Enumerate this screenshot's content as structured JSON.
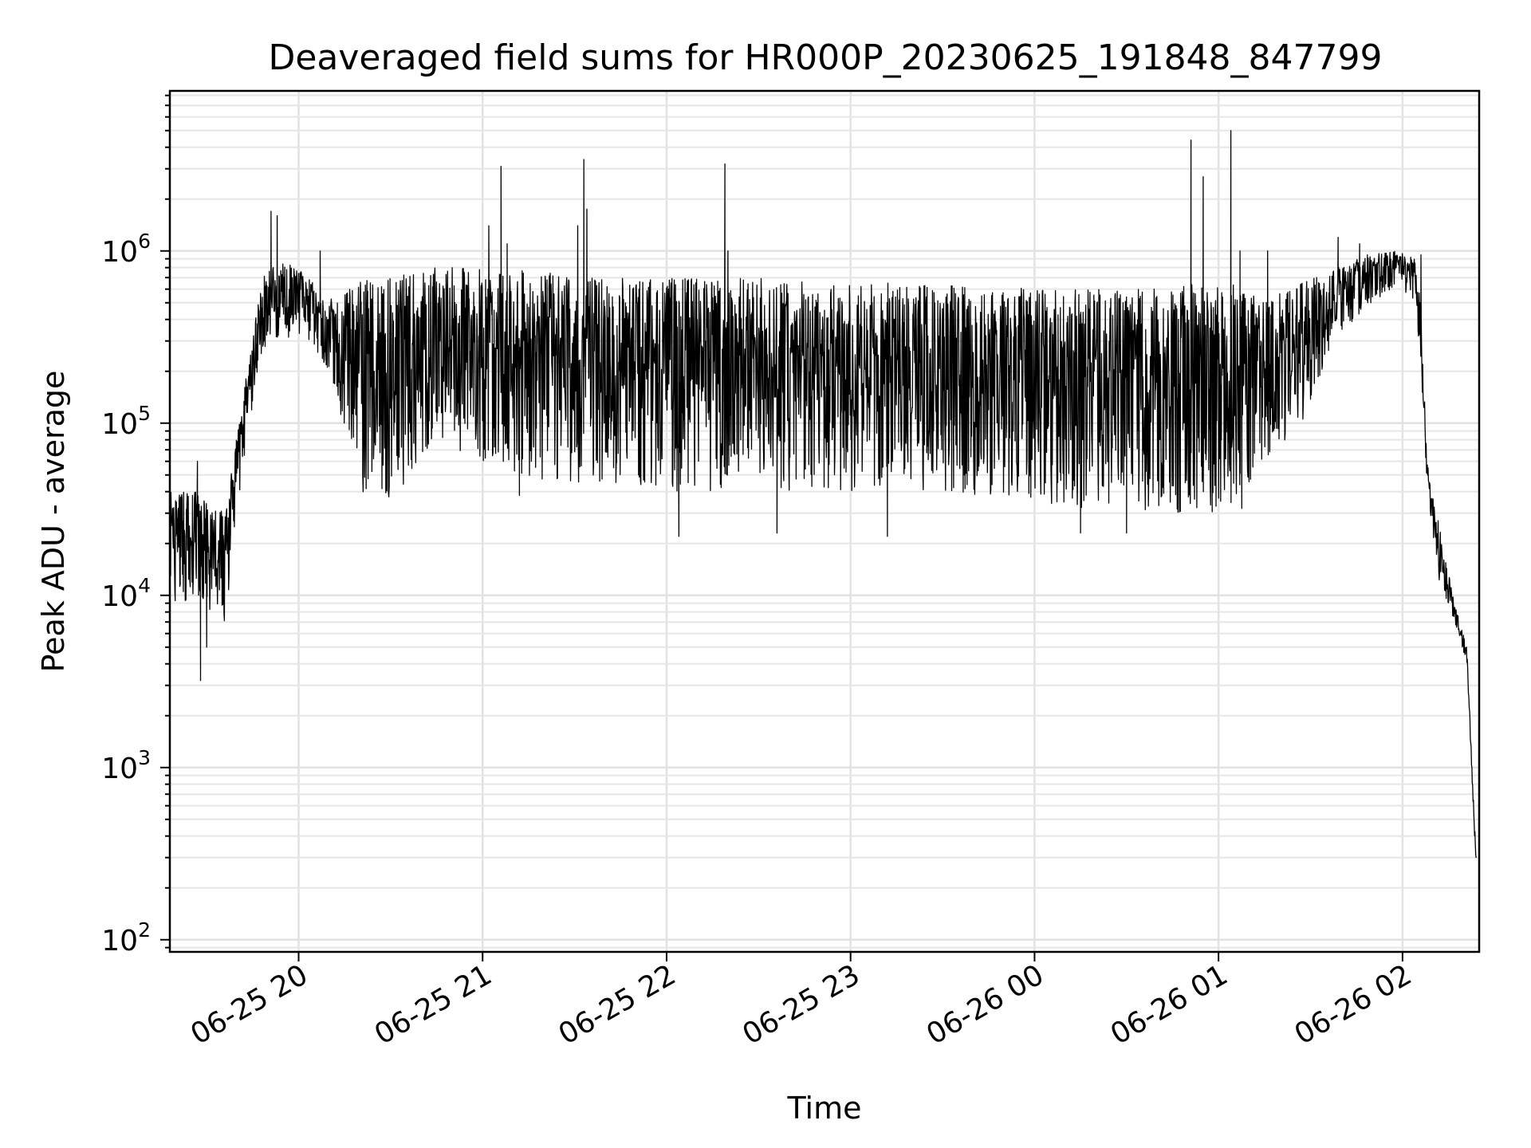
{
  "chart_data": {
    "type": "line",
    "title": "Deaveraged field sums for HR000P_20230625_191848_847799",
    "xlabel": "Time",
    "ylabel": "Peak ADU - average",
    "yscale": "log",
    "ylim": [
      85,
      8500000
    ],
    "xlim": [
      "06-25 19:18",
      "06-26 02:25"
    ],
    "grid": true,
    "line_color": "#000000",
    "x_ticks": [
      {
        "t": "06-25 20:00",
        "label": "06-25 20"
      },
      {
        "t": "06-25 21:00",
        "label": "06-25 21"
      },
      {
        "t": "06-25 22:00",
        "label": "06-25 22"
      },
      {
        "t": "06-25 23:00",
        "label": "06-25 23"
      },
      {
        "t": "06-26 00:00",
        "label": "06-26 00"
      },
      {
        "t": "06-26 01:00",
        "label": "06-26 01"
      },
      {
        "t": "06-26 02:00",
        "label": "06-26 02"
      }
    ],
    "y_ticks": [
      {
        "value": 100,
        "base": "10",
        "exp": "2"
      },
      {
        "value": 1000,
        "base": "10",
        "exp": "3"
      },
      {
        "value": 10000,
        "base": "10",
        "exp": "4"
      },
      {
        "value": 100000,
        "base": "10",
        "exp": "5"
      },
      {
        "value": 1000000,
        "base": "10",
        "exp": "6"
      }
    ],
    "envelope": [
      [
        "06-25 19:18",
        9000,
        40000
      ],
      [
        "06-25 19:27",
        9000,
        40000
      ],
      [
        "06-25 19:36",
        7000,
        30000
      ],
      [
        "06-25 19:42",
        60000,
        150000
      ],
      [
        "06-25 19:48",
        250000,
        700000
      ],
      [
        "06-25 19:54",
        320000,
        900000
      ],
      [
        "06-25 20:04",
        300000,
        700000
      ],
      [
        "06-25 20:12",
        150000,
        500000
      ],
      [
        "06-25 20:20",
        40000,
        700000
      ],
      [
        "06-25 20:30",
        35000,
        700000
      ],
      [
        "06-25 20:45",
        80000,
        800000
      ],
      [
        "06-25 21:00",
        60000,
        800000
      ],
      [
        "06-25 21:20",
        45000,
        750000
      ],
      [
        "06-25 21:40",
        45000,
        700000
      ],
      [
        "06-25 22:00",
        40000,
        700000
      ],
      [
        "06-25 22:30",
        40000,
        700000
      ],
      [
        "06-25 23:00",
        40000,
        650000
      ],
      [
        "06-25 23:30",
        40000,
        650000
      ],
      [
        "06-26 00:00",
        35000,
        600000
      ],
      [
        "06-26 00:30",
        30000,
        600000
      ],
      [
        "06-26 00:59",
        30000,
        650000
      ],
      [
        "06-26 01:08",
        30000,
        650000
      ],
      [
        "06-26 01:15",
        60000,
        500000
      ],
      [
        "06-26 01:28",
        100000,
        700000
      ],
      [
        "06-26 01:38",
        300000,
        800000
      ],
      [
        "06-26 01:48",
        450000,
        950000
      ],
      [
        "06-26 01:58",
        600000,
        1000000
      ],
      [
        "06-26 02:04",
        500000,
        900000
      ],
      [
        "06-26 02:06",
        200000,
        500000
      ],
      [
        "06-26 02:08",
        40000,
        60000
      ],
      [
        "06-26 02:12",
        12000,
        25000
      ],
      [
        "06-26 02:17",
        7000,
        9000
      ],
      [
        "06-26 02:21",
        4000,
        5000
      ],
      [
        "06-26 02:24",
        250,
        300
      ]
    ],
    "spikes": [
      [
        "06-25 19:27",
        60000
      ],
      [
        "06-25 19:28",
        3200
      ],
      [
        "06-25 19:30",
        5000
      ],
      [
        "06-25 19:51",
        1700000
      ],
      [
        "06-25 19:53",
        1600000
      ],
      [
        "06-25 20:07",
        1000000
      ],
      [
        "06-25 21:02",
        1400000
      ],
      [
        "06-25 21:06",
        3100000
      ],
      [
        "06-25 21:08",
        1100000
      ],
      [
        "06-25 21:31",
        1400000
      ],
      [
        "06-25 21:33",
        3400000
      ],
      [
        "06-25 21:34",
        1750000
      ],
      [
        "06-25 22:19",
        3200000
      ],
      [
        "06-25 22:20",
        1000000
      ],
      [
        "06-25 21:12",
        38000
      ],
      [
        "06-25 22:04",
        22000
      ],
      [
        "06-25 22:36",
        23000
      ],
      [
        "06-25 23:12",
        22000
      ],
      [
        "06-26 00:15",
        23000
      ],
      [
        "06-26 00:30",
        23000
      ],
      [
        "06-26 00:51",
        4400000
      ],
      [
        "06-26 00:55",
        2700000
      ],
      [
        "06-26 01:04",
        5000000
      ],
      [
        "06-26 01:07",
        1000000
      ],
      [
        "06-26 01:16",
        1000000
      ],
      [
        "06-26 01:39",
        1200000
      ],
      [
        "06-26 01:46",
        1100000
      ],
      [
        "06-26 02:06",
        950000
      ]
    ]
  }
}
